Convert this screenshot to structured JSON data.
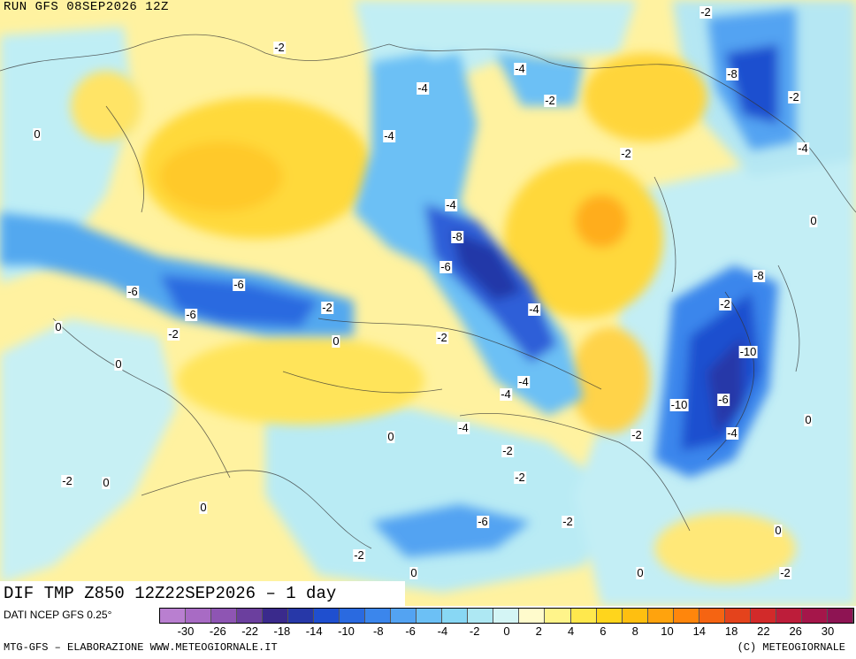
{
  "header": {
    "run_title": "RUN GFS 08SEP2026 12Z"
  },
  "map": {
    "title": "DIF TMP Z850 12Z22SEP2026 – 1 day",
    "contour_labels": [
      "-2",
      "-4",
      "-6",
      "-8",
      "-10",
      "0",
      "-2",
      "-4",
      "-6",
      "-8",
      "-2",
      "-4",
      "0",
      "-2",
      "-6",
      "-4",
      "-8",
      "-10",
      "0",
      "-2",
      "-4",
      "-2",
      "-6",
      "-4",
      "-2",
      "0",
      "-2",
      "-4",
      "-6",
      "-2",
      "0",
      "0",
      "-2",
      "-4",
      "0",
      "0",
      "0",
      "-2",
      "-4",
      "-6",
      "-2",
      "0",
      "-2",
      "-2",
      "-4",
      "-2",
      "0",
      "-2",
      "0"
    ]
  },
  "colorbar": {
    "source": "DATI NCEP GFS 0.25°",
    "colors": [
      "#b97fd0",
      "#a86bc4",
      "#8e55b3",
      "#6b3f9e",
      "#3a2a8c",
      "#2738a8",
      "#1f4fcf",
      "#2a6ae0",
      "#3b86ec",
      "#53a3f2",
      "#6cc0f5",
      "#88d7f4",
      "#aee8f3",
      "#d4f5f5",
      "#fffbcc",
      "#fff48a",
      "#ffe84d",
      "#ffd51c",
      "#ffbf10",
      "#ffa30d",
      "#ff860c",
      "#f56412",
      "#e4431c",
      "#d22a2a",
      "#bd1d3a",
      "#a5164a",
      "#8e1453"
    ],
    "tick_labels": [
      "-30",
      "-26",
      "-22",
      "-18",
      "-14",
      "-10",
      "-8",
      "-6",
      "-4",
      "-2",
      "0",
      "2",
      "4",
      "6",
      "8",
      "10",
      "14",
      "18",
      "22",
      "26",
      "30"
    ]
  },
  "footer": {
    "left": "MTG-GFS – ELABORAZIONE WWW.METEOGIORNALE.IT",
    "right": "(C) METEOGIORNALE"
  }
}
